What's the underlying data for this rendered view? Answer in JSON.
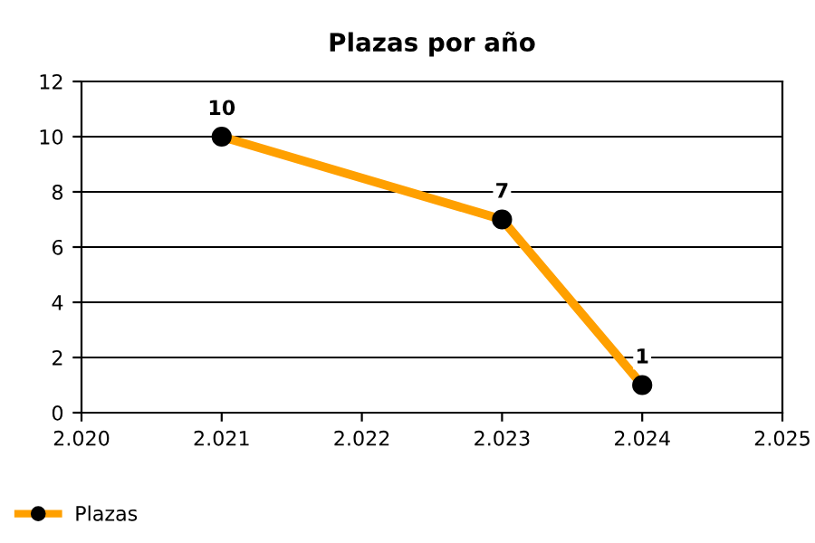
{
  "chart_data": {
    "type": "line",
    "title": "Plazas por año",
    "x": [
      2021,
      2023,
      2024
    ],
    "series": [
      {
        "name": "Plazas",
        "color": "#ffa000",
        "values": [
          10,
          7,
          1
        ]
      }
    ],
    "xlim": [
      2020,
      2025
    ],
    "xticks": [
      {
        "value": 2020,
        "label": "2.020"
      },
      {
        "value": 2021,
        "label": "2.021"
      },
      {
        "value": 2022,
        "label": "2.022"
      },
      {
        "value": 2023,
        "label": "2.023"
      },
      {
        "value": 2024,
        "label": "2.024"
      },
      {
        "value": 2025,
        "label": "2.025"
      }
    ],
    "ylim": [
      0,
      12
    ],
    "yticks": [
      0,
      2,
      4,
      6,
      8,
      10,
      12
    ],
    "grid": "y",
    "legend": "bottom left",
    "marker": "circle",
    "line_style": "solid",
    "data_labels": true
  }
}
